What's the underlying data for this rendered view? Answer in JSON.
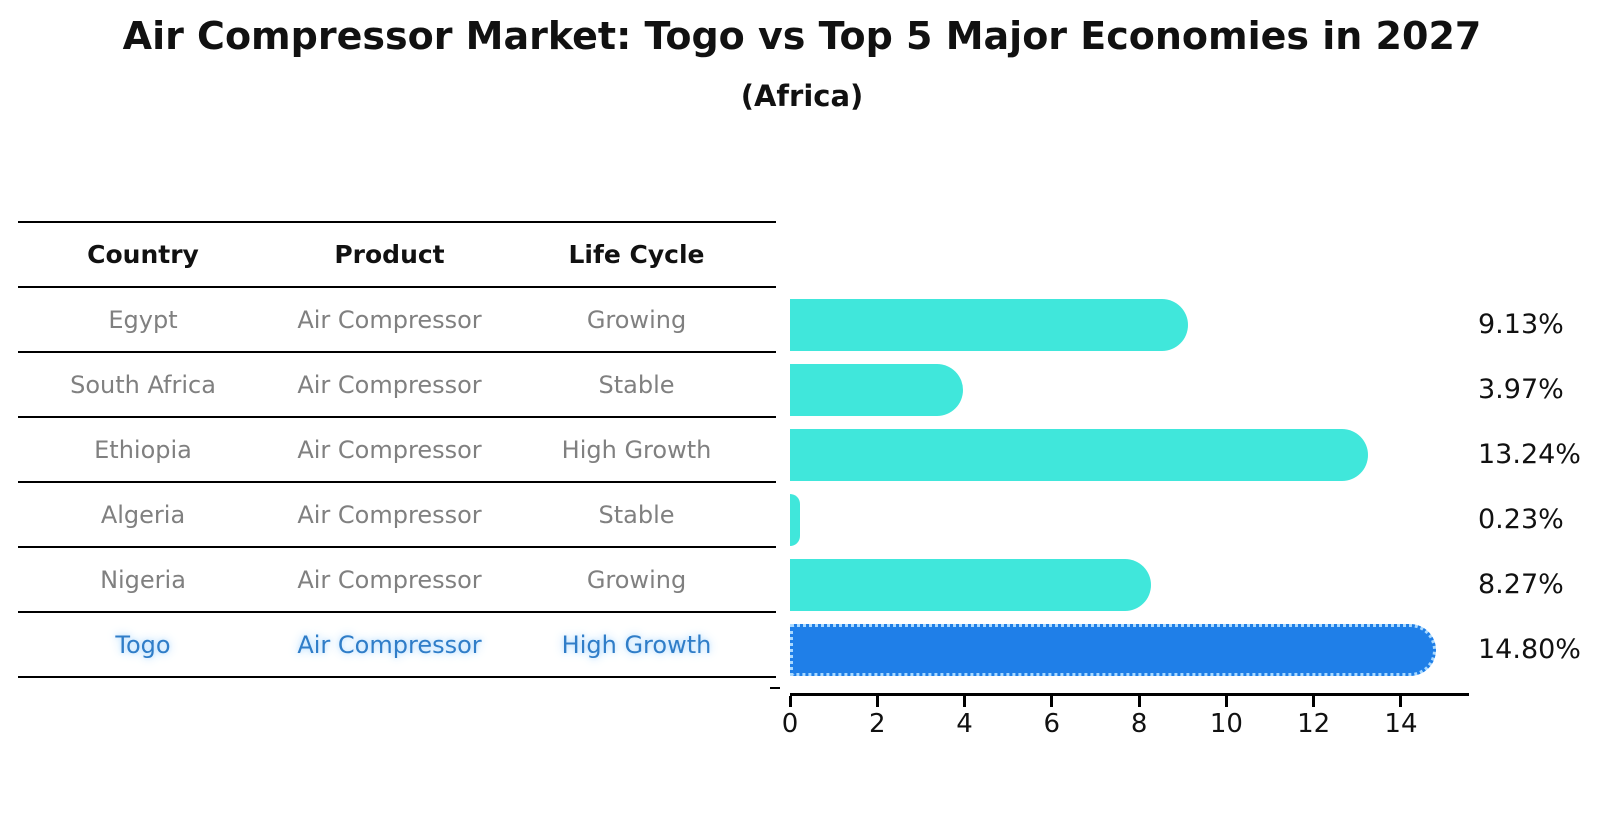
{
  "title": "Air Compressor Market: Togo vs Top 5 Major Economies in 2027",
  "subtitle": "(Africa)",
  "table": {
    "headers": [
      "Country",
      "Product",
      "Life Cycle"
    ],
    "rows": [
      {
        "country": "Egypt",
        "product": "Air Compressor",
        "life_cycle": "Growing",
        "highlight": false
      },
      {
        "country": "South Africa",
        "product": "Air Compressor",
        "life_cycle": "Stable",
        "highlight": false
      },
      {
        "country": "Ethiopia",
        "product": "Air Compressor",
        "life_cycle": "High Growth",
        "highlight": false
      },
      {
        "country": "Algeria",
        "product": "Air Compressor",
        "life_cycle": "Stable",
        "highlight": false
      },
      {
        "country": "Nigeria",
        "product": "Air Compressor",
        "life_cycle": "Growing",
        "highlight": false
      },
      {
        "country": "Togo",
        "product": "Air Compressor",
        "life_cycle": "High Growth",
        "highlight": true
      }
    ]
  },
  "chart_data": {
    "type": "bar",
    "orientation": "horizontal",
    "title": "Air Compressor Market: Togo vs Top 5 Major Economies in 2027",
    "subtitle": "(Africa)",
    "categories": [
      "Egypt",
      "South Africa",
      "Ethiopia",
      "Algeria",
      "Nigeria",
      "Togo"
    ],
    "values": [
      9.13,
      3.97,
      13.24,
      0.23,
      8.27,
      14.8
    ],
    "value_labels": [
      "9.13%",
      "3.97%",
      "13.24%",
      "0.23%",
      "8.27%",
      "14.80%"
    ],
    "x_ticks": [
      0,
      2,
      4,
      6,
      8,
      10,
      12,
      14
    ],
    "xlim": [
      0,
      15.54
    ],
    "grid": false,
    "legend": false,
    "bar_color": "#40E7DB",
    "highlight_color": "#1F7FE8",
    "highlight_index": 5,
    "highlight_edge_style": "dotted"
  },
  "colors": {
    "bar_cyan": "#40E7DB",
    "bar_blue": "#1F7FE8",
    "togo_text": "#2F7DC8",
    "table_text": "#808080",
    "heading_text": "#111111"
  }
}
